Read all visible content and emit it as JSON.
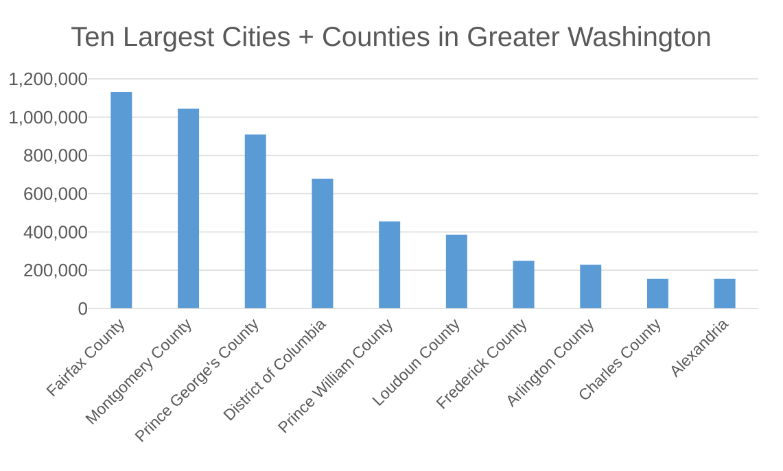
{
  "chart_data": {
    "type": "bar",
    "title": "Ten Largest Cities + Counties in Greater Washington",
    "xlabel": "",
    "ylabel": "",
    "categories": [
      "Fairfax County",
      "Montgomery County",
      "Prince George's County",
      "District of Columbia",
      "Prince William County",
      "Loudoun County",
      "Frederick County",
      "Arlington County",
      "Charles County",
      "Alexandria"
    ],
    "values": [
      1132000,
      1044000,
      909000,
      678000,
      455000,
      385000,
      249000,
      229000,
      155000,
      155000
    ],
    "ylim": [
      0,
      1200000
    ],
    "yticks": [
      0,
      200000,
      400000,
      600000,
      800000,
      1000000,
      1200000
    ],
    "ytick_labels": [
      "0",
      "200,000",
      "400,000",
      "600,000",
      "800,000",
      "1,000,000",
      "1,200,000"
    ],
    "grid": true,
    "bar_color": "#5b9bd5",
    "grid_color": "#d9d9d9",
    "text_color": "#595959"
  }
}
